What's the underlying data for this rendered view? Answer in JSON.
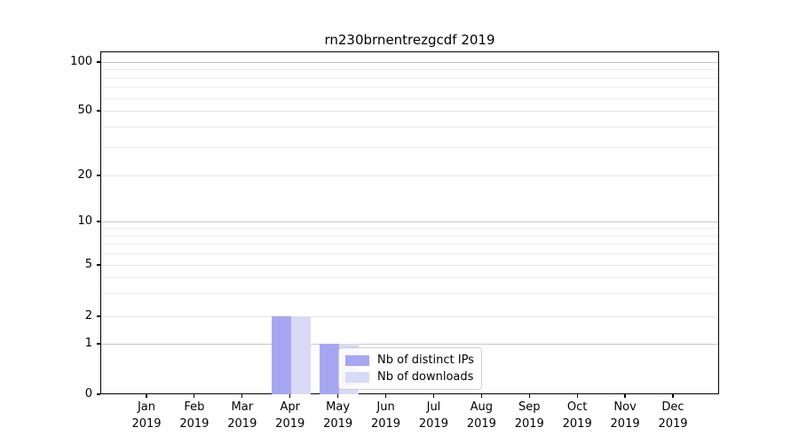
{
  "title": "rn230brnentrezgcdf 2019",
  "chart_data": {
    "type": "bar",
    "title": "rn230brnentrezgcdf 2019",
    "categories": [
      {
        "month": "Jan",
        "year": "2019"
      },
      {
        "month": "Feb",
        "year": "2019"
      },
      {
        "month": "Mar",
        "year": "2019"
      },
      {
        "month": "Apr",
        "year": "2019"
      },
      {
        "month": "May",
        "year": "2019"
      },
      {
        "month": "Jun",
        "year": "2019"
      },
      {
        "month": "Jul",
        "year": "2019"
      },
      {
        "month": "Aug",
        "year": "2019"
      },
      {
        "month": "Sep",
        "year": "2019"
      },
      {
        "month": "Oct",
        "year": "2019"
      },
      {
        "month": "Nov",
        "year": "2019"
      },
      {
        "month": "Dec",
        "year": "2019"
      }
    ],
    "series": [
      {
        "name": "Nb of distinct IPs",
        "color": "#a6a6f3",
        "values": [
          0,
          0,
          0,
          2,
          1,
          0,
          0,
          0,
          0,
          0,
          0,
          0
        ]
      },
      {
        "name": "Nb of downloads",
        "color": "#d9d9f8",
        "values": [
          0,
          0,
          0,
          2,
          1,
          0,
          0,
          0,
          0,
          0,
          0,
          0
        ]
      }
    ],
    "yaxis": {
      "scale": "symlog",
      "ticks": [
        0,
        1,
        2,
        5,
        10,
        20,
        50,
        100
      ],
      "minor_gridlines": [
        3,
        4,
        6,
        7,
        8,
        9,
        30,
        40,
        60,
        70,
        80,
        90
      ],
      "range": [
        0,
        116
      ]
    },
    "xlabel": "",
    "ylabel": "",
    "grid": "horizontal",
    "legend": {
      "position": "lower-center",
      "entries": [
        "Nb of distinct IPs",
        "Nb of downloads"
      ]
    }
  },
  "colors": {
    "major_grid": "#c6c6c6",
    "minor_grid": "#ebebeb",
    "labeled_grid": "#e7e7e7",
    "axis": "#000000",
    "legend_border": "#cccccc"
  }
}
